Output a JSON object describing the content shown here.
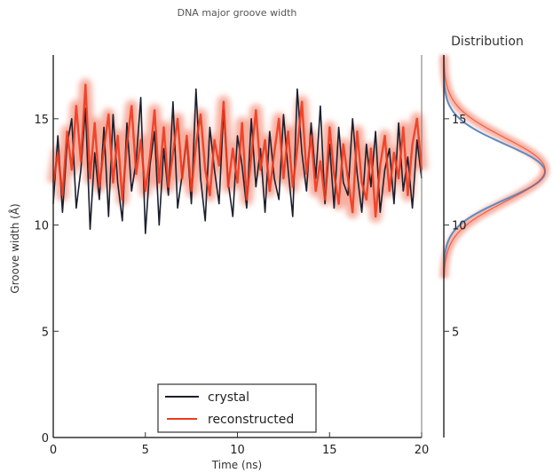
{
  "chart_data": [
    {
      "type": "line",
      "title": "DNA major groove width",
      "xlabel": "Time (ns)",
      "ylabel": "Groove width (Å)",
      "xlim": [
        0,
        20
      ],
      "ylim": [
        0,
        18
      ],
      "x_ticks": [
        "0",
        "5",
        "10",
        "15",
        "20"
      ],
      "y_ticks": [
        "0",
        "5",
        "10",
        "15"
      ],
      "grid": false,
      "legend": "bottom-center",
      "series": [
        {
          "name": "crystal",
          "color": "#1a1f2e",
          "x": [
            0,
            0.25,
            0.5,
            0.75,
            1,
            1.25,
            1.5,
            1.75,
            2,
            2.25,
            2.5,
            2.75,
            3,
            3.25,
            3.5,
            3.75,
            4,
            4.25,
            4.5,
            4.75,
            5,
            5.25,
            5.5,
            5.75,
            6,
            6.25,
            6.5,
            6.75,
            7,
            7.25,
            7.5,
            7.75,
            8,
            8.25,
            8.5,
            8.75,
            9,
            9.25,
            9.5,
            9.75,
            10,
            10.25,
            10.5,
            10.75,
            11,
            11.25,
            11.5,
            11.75,
            12,
            12.25,
            12.5,
            12.75,
            13,
            13.25,
            13.5,
            13.75,
            14,
            14.25,
            14.5,
            14.75,
            15,
            15.25,
            15.5,
            15.75,
            16,
            16.25,
            16.5,
            16.75,
            17,
            17.25,
            17.5,
            17.75,
            18,
            18.25,
            18.5,
            18.75,
            19,
            19.25,
            19.5,
            19.75,
            20
          ],
          "values": [
            11.0,
            14.2,
            10.6,
            13.8,
            15.0,
            10.8,
            12.6,
            15.5,
            9.8,
            13.4,
            11.2,
            14.6,
            10.4,
            15.2,
            12.0,
            10.2,
            14.8,
            11.6,
            13.0,
            16.0,
            9.6,
            12.8,
            14.4,
            10.0,
            13.6,
            11.4,
            15.8,
            10.8,
            12.4,
            14.0,
            11.0,
            16.4,
            12.2,
            10.2,
            14.6,
            12.6,
            11.0,
            15.4,
            12.0,
            10.4,
            14.2,
            12.8,
            10.8,
            15.0,
            11.8,
            13.6,
            10.6,
            14.4,
            12.2,
            11.2,
            15.2,
            12.6,
            10.4,
            16.4,
            13.4,
            11.6,
            14.8,
            12.2,
            15.6,
            11.0,
            13.8,
            10.8,
            14.6,
            12.0,
            11.4,
            15.0,
            12.4,
            10.6,
            13.8,
            11.8,
            14.4,
            10.6,
            12.6,
            13.6,
            11.0,
            14.8,
            11.6,
            13.2,
            10.8,
            14.0,
            12.2
          ]
        },
        {
          "name": "reconstructed",
          "color": "#f03a1e",
          "x": [
            0,
            0.25,
            0.5,
            0.75,
            1,
            1.25,
            1.5,
            1.75,
            2,
            2.25,
            2.5,
            2.75,
            3,
            3.25,
            3.5,
            3.75,
            4,
            4.25,
            4.5,
            4.75,
            5,
            5.25,
            5.5,
            5.75,
            6,
            6.25,
            6.5,
            6.75,
            7,
            7.25,
            7.5,
            7.75,
            8,
            8.25,
            8.5,
            8.75,
            9,
            9.25,
            9.5,
            9.75,
            10,
            10.25,
            10.5,
            10.75,
            11,
            11.25,
            11.5,
            11.75,
            12,
            12.25,
            12.5,
            12.75,
            13,
            13.25,
            13.5,
            13.75,
            14,
            14.25,
            14.5,
            14.75,
            15,
            15.25,
            15.5,
            15.75,
            16,
            16.25,
            16.5,
            16.75,
            17,
            17.25,
            17.5,
            17.75,
            18,
            18.25,
            18.5,
            18.75,
            19,
            19.25,
            19.5,
            19.75,
            20
          ],
          "values": [
            12.0,
            13.4,
            11.4,
            14.4,
            12.6,
            15.6,
            13.0,
            16.6,
            12.2,
            14.8,
            11.8,
            13.6,
            15.2,
            12.0,
            14.2,
            11.2,
            13.8,
            15.6,
            12.4,
            14.0,
            11.6,
            13.2,
            15.4,
            12.0,
            14.6,
            11.8,
            13.4,
            15.0,
            12.2,
            14.2,
            11.6,
            13.8,
            15.2,
            12.6,
            11.4,
            14.0,
            12.8,
            15.8,
            11.8,
            13.6,
            12.0,
            14.8,
            11.2,
            13.2,
            15.4,
            12.6,
            14.0,
            11.6,
            13.4,
            15.0,
            12.2,
            14.4,
            11.8,
            13.6,
            15.8,
            12.4,
            14.2,
            11.6,
            13.0,
            11.2,
            14.6,
            12.4,
            11.0,
            13.8,
            12.2,
            10.6,
            14.4,
            12.0,
            11.2,
            13.6,
            10.4,
            12.8,
            14.2,
            11.6,
            13.4,
            12.2,
            14.6,
            11.4,
            13.8,
            15.0,
            12.6
          ]
        }
      ]
    },
    {
      "type": "line",
      "title": "Distribution",
      "ylim": [
        0,
        18
      ],
      "y_ticks": [
        "5",
        "10",
        "15"
      ],
      "grid": false,
      "series": [
        {
          "name": "crystal",
          "color": "#5b8cc4",
          "mean": 12.5,
          "sd": 1.3
        },
        {
          "name": "reconstructed",
          "color": "#f03a1e",
          "mean": 12.6,
          "sd": 1.5
        }
      ]
    }
  ]
}
